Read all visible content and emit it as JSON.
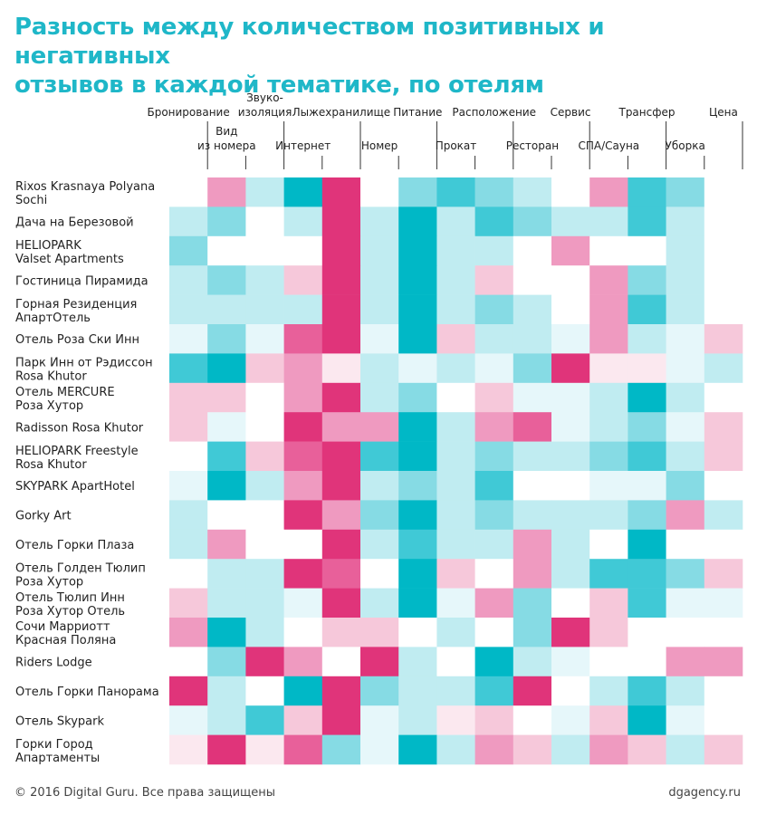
{
  "title_line1": "Разность между количеством позитивных и негативных",
  "title_line2": "отзывов в каждой тематике, по отелям",
  "footer": {
    "copyright": "© 2016 Digital Guru. Все права защищены",
    "site": "dgagency.ru"
  },
  "colors": {
    "neg3": "#e0347a",
    "neg2": "#e8609a",
    "neg1": "#ef9ac0",
    "neg0": "#f6c8da",
    "negX": "#fbe8ef",
    "zero": "#ffffff",
    "pos0": "#e6f7fa",
    "pos1": "#c0ecf1",
    "pos2": "#86dbe4",
    "pos3": "#40c9d6",
    "pos4": "#00b8c6"
  },
  "chart_data": {
    "type": "heatmap",
    "title": "Разность между количеством позитивных и негативных отзывов в каждой тематике, по отелям",
    "columns": [
      {
        "label": [
          "Бронирование"
        ]
      },
      {
        "label": [
          "Вид",
          "из номера"
        ]
      },
      {
        "label": [
          "Звуко-",
          "изоляция"
        ]
      },
      {
        "label": [
          "Интернет"
        ]
      },
      {
        "label": [
          "Лыжехранилище"
        ]
      },
      {
        "label": [
          "Номер"
        ]
      },
      {
        "label": [
          "Питание"
        ]
      },
      {
        "label": [
          "Прокат"
        ]
      },
      {
        "label": [
          "Расположение"
        ]
      },
      {
        "label": [
          "Ресторан"
        ]
      },
      {
        "label": [
          "Сервис"
        ]
      },
      {
        "label": [
          "СПА/Сауна"
        ]
      },
      {
        "label": [
          "Трансфер"
        ]
      },
      {
        "label": [
          "Уборка"
        ]
      },
      {
        "label": [
          "Цена"
        ]
      }
    ],
    "rows": [
      {
        "label": [
          "Rixos Krasnaya Polyana",
          "Sochi"
        ],
        "values": [
          0,
          -2,
          1,
          4,
          -4,
          0,
          2,
          3,
          2,
          1,
          0,
          -2,
          3,
          2,
          0
        ]
      },
      {
        "label": [
          "Дача на Березовой"
        ],
        "values": [
          1,
          2,
          0,
          1,
          -4,
          1,
          4,
          1,
          3,
          2,
          1,
          1,
          3,
          1,
          0
        ]
      },
      {
        "label": [
          "HELIOPARK",
          "Valset Apartments"
        ],
        "values": [
          2,
          0,
          0,
          0,
          -4,
          1,
          4,
          1,
          1,
          0,
          -2,
          0,
          0,
          1,
          0
        ]
      },
      {
        "label": [
          "Гостиница Пирамида"
        ],
        "values": [
          1,
          2,
          1,
          -1,
          -4,
          1,
          4,
          1,
          -1,
          0,
          0,
          -2,
          2,
          1,
          0
        ]
      },
      {
        "label": [
          "Горная Резиденция",
          "АпартОтель"
        ],
        "values": [
          1,
          1,
          1,
          1,
          -4,
          1,
          4,
          1,
          2,
          1,
          0,
          -2,
          3,
          1,
          0
        ]
      },
      {
        "label": [
          "Отель Роза Ски Инн"
        ],
        "values": [
          0.5,
          2,
          0.5,
          -3,
          -4,
          0.5,
          4,
          -1,
          1,
          1,
          0.5,
          -2,
          1,
          0.5,
          -1
        ]
      },
      {
        "label": [
          "Парк Инн от Рэдиссон",
          "Rosa Khutor"
        ],
        "values": [
          3,
          4,
          -1,
          -2,
          -0.5,
          1,
          0.5,
          1,
          0.5,
          2,
          -4,
          -0.5,
          -0.5,
          0.5,
          1
        ]
      },
      {
        "label": [
          "Отель MERCURE",
          "Роза Хутор"
        ],
        "values": [
          -1,
          -1,
          0,
          -2,
          -4,
          1,
          2,
          0,
          -1,
          0.5,
          0.5,
          1,
          4,
          1,
          0
        ]
      },
      {
        "label": [
          "Radisson Rosa Khutor"
        ],
        "values": [
          -1,
          0.5,
          0,
          -4,
          -2,
          -2,
          4,
          1,
          -2,
          -3,
          0.5,
          1,
          2,
          0.5,
          -1
        ]
      },
      {
        "label": [
          "HELIOPARK Freestyle",
          "Rosa Khutor"
        ],
        "values": [
          0,
          3,
          -1,
          -3,
          -4,
          3,
          4,
          1,
          2,
          1,
          1,
          2,
          3,
          1,
          -1
        ]
      },
      {
        "label": [
          "SKYPARK ApartHotel"
        ],
        "values": [
          0.5,
          4,
          1,
          -2,
          -4,
          1,
          2,
          1,
          3,
          0,
          0,
          0.5,
          0.5,
          2,
          0
        ]
      },
      {
        "label": [
          "Gorky Art"
        ],
        "values": [
          1,
          0,
          0,
          -4,
          -2,
          2,
          4,
          1,
          2,
          1,
          1,
          1,
          2,
          -2,
          1
        ]
      },
      {
        "label": [
          "Отель Горки Плаза"
        ],
        "values": [
          1,
          -2,
          0,
          0,
          -4,
          1,
          3,
          1,
          1,
          -2,
          1,
          0,
          4,
          0,
          0
        ]
      },
      {
        "label": [
          "Отель Голден Тюлип",
          "Роза Хутор"
        ],
        "values": [
          0,
          1,
          1,
          -4,
          -3,
          0,
          4,
          -1,
          0,
          -2,
          1,
          3,
          3,
          2,
          -1
        ]
      },
      {
        "label": [
          "Отель Тюлип Инн",
          "Роза Хутор Отель"
        ],
        "values": [
          -1,
          1,
          1,
          0.5,
          -4,
          1,
          4,
          0.5,
          -2,
          2,
          0,
          -1,
          3,
          0.5,
          0.5
        ]
      },
      {
        "label": [
          "Сочи Марриотт",
          "Красная Поляна"
        ],
        "values": [
          -2,
          4,
          1,
          0,
          -1,
          -1,
          0,
          1,
          0,
          2,
          -4,
          -1,
          0,
          0,
          0
        ]
      },
      {
        "label": [
          "Riders Lodge"
        ],
        "values": [
          0,
          2,
          -4,
          -2,
          0,
          -4,
          1,
          0,
          4,
          1,
          0.5,
          0,
          0,
          -2,
          -2
        ]
      },
      {
        "label": [
          "Отель Горки Панорама"
        ],
        "values": [
          -4,
          1,
          0,
          4,
          -4,
          2,
          1,
          1,
          3,
          -4,
          0,
          1,
          3,
          1,
          0
        ]
      },
      {
        "label": [
          "Отель Skypark"
        ],
        "values": [
          0.5,
          1,
          3,
          -1,
          -4,
          0.5,
          1,
          -0.5,
          -1,
          0,
          0.5,
          -1,
          4,
          0.5,
          0
        ]
      },
      {
        "label": [
          "Горки Город",
          "Апартаменты"
        ],
        "values": [
          -0.5,
          -4,
          -0.5,
          -3,
          2,
          0.5,
          4,
          1,
          -2,
          -1,
          1,
          -2,
          -1,
          1,
          -1
        ]
      }
    ]
  }
}
